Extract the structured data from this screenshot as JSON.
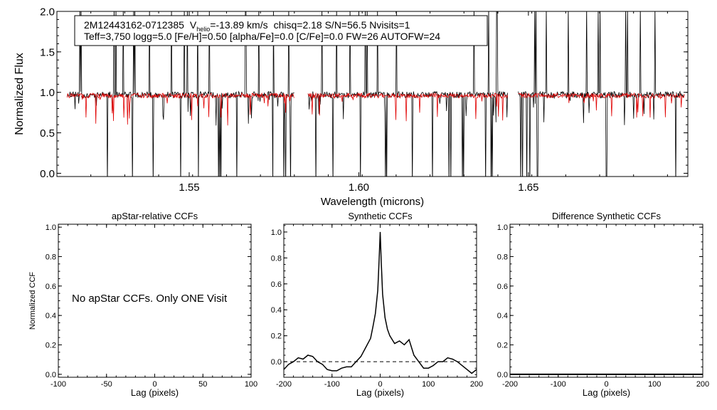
{
  "chart_data": [
    {
      "type": "line",
      "title": "",
      "xlabel": "Wavelength (microns)",
      "ylabel": "Normalized Flux",
      "xlim": [
        1.511,
        1.697
      ],
      "ylim": [
        -0.04,
        2.0
      ],
      "xticks": [
        1.55,
        1.6,
        1.65
      ],
      "xtick_labels": [
        "1.55",
        "1.60",
        "1.65"
      ],
      "yticks": [
        0.0,
        0.5,
        1.0,
        1.5,
        2.0
      ],
      "ytick_labels": [
        "0.0",
        "0.5",
        "1.0",
        "1.5",
        "2.0"
      ],
      "annotation": {
        "star_id": "2M12443162-0712385",
        "v_label": "V",
        "v_sub": "helio",
        "v_value": "=-13.89 km/s",
        "rest_line1": "chisq=2.18  S/N=56.5  Nvisits=1",
        "line2": "Teff=3,750 logg=5.0 [Fe/H]=0.50 [alpha/Fe]=0.0 [C/Fe]=0.0 FW=26 AUTOFW=24"
      },
      "detector_ranges": [
        [
          1.514,
          1.581
        ],
        [
          1.585,
          1.644
        ],
        [
          1.647,
          1.696
        ]
      ],
      "series": [
        {
          "name": "observed",
          "color": "#000000",
          "continuum": 0.97
        },
        {
          "name": "synthetic",
          "color": "#e00000",
          "continuum": 0.96
        }
      ],
      "spikes_up": [
        1.518,
        1.523,
        1.528,
        1.531,
        1.534,
        1.538,
        1.541,
        1.545,
        1.549,
        1.551,
        1.553,
        1.556,
        1.559,
        1.563,
        1.567,
        1.571,
        1.575,
        1.579,
        1.589,
        1.593,
        1.597,
        1.602,
        1.606,
        1.611,
        1.617,
        1.621,
        1.626,
        1.63,
        1.634,
        1.638,
        1.641,
        1.652,
        1.655,
        1.657,
        1.662,
        1.667,
        1.669,
        1.671,
        1.679,
        1.683,
        1.687,
        1.69
      ],
      "spikes_down": [
        1.514,
        1.526,
        1.533,
        1.539,
        1.544,
        1.547,
        1.553,
        1.559,
        1.564,
        1.575,
        1.578,
        1.58,
        1.587,
        1.592,
        1.6,
        1.608,
        1.616,
        1.622,
        1.627,
        1.631,
        1.637,
        1.639,
        1.641,
        1.648,
        1.65,
        1.653,
        1.665,
        1.673,
        1.685,
        1.693
      ]
    },
    {
      "type": "line",
      "title": "apStar-relative CCFs",
      "xlabel": "Lag (pixels)",
      "ylabel": "Normalized CCF",
      "xlim": [
        -100,
        100
      ],
      "ylim": [
        -0.02,
        1.02
      ],
      "xticks": [
        -100,
        -50,
        0,
        50,
        100
      ],
      "xtick_labels": [
        "-100",
        "-50",
        "0",
        "50",
        "100"
      ],
      "yticks": [
        0.0,
        0.2,
        0.4,
        0.6,
        0.8,
        1.0
      ],
      "ytick_labels": [
        "0.0",
        "0.2",
        "0.4",
        "0.6",
        "0.8",
        "1.0"
      ],
      "message": "No apStar CCFs.  Only ONE Visit",
      "series": []
    },
    {
      "type": "line",
      "title": "Synthetic CCFs",
      "xlabel": "Lag (pixels)",
      "ylabel": "",
      "xlim": [
        -200,
        200
      ],
      "ylim": [
        -0.12,
        1.06
      ],
      "xticks": [
        -200,
        -100,
        0,
        100,
        200
      ],
      "xtick_labels": [
        "-200",
        "-100",
        "0",
        "100",
        "200"
      ],
      "yticks": [
        0.0,
        0.2,
        0.4,
        0.6,
        0.8,
        1.0
      ],
      "ytick_labels": [
        "0.0",
        "0.2",
        "0.4",
        "0.6",
        "0.8",
        "1.0"
      ],
      "reference_line": 0.0,
      "series": [
        {
          "name": "ccf",
          "x": [
            -200,
            -190,
            -180,
            -170,
            -160,
            -150,
            -140,
            -130,
            -120,
            -110,
            -100,
            -90,
            -80,
            -70,
            -60,
            -50,
            -40,
            -30,
            -20,
            -15,
            -10,
            -5,
            -2,
            0,
            2,
            5,
            10,
            15,
            20,
            30,
            40,
            50,
            60,
            70,
            80,
            90,
            100,
            110,
            120,
            130,
            140,
            150,
            160,
            170,
            180,
            190,
            200
          ],
          "y": [
            -0.06,
            -0.02,
            0.0,
            0.03,
            0.02,
            0.05,
            0.04,
            0.0,
            -0.02,
            -0.06,
            -0.07,
            -0.07,
            -0.05,
            -0.04,
            -0.04,
            0.0,
            0.04,
            0.11,
            0.18,
            0.27,
            0.37,
            0.55,
            0.8,
            1.0,
            0.78,
            0.52,
            0.34,
            0.25,
            0.2,
            0.14,
            0.16,
            0.13,
            0.17,
            0.05,
            0.0,
            -0.05,
            -0.05,
            -0.03,
            0.0,
            0.0,
            0.03,
            0.02,
            0.0,
            -0.03,
            -0.06,
            -0.09,
            -0.06
          ]
        }
      ]
    },
    {
      "type": "line",
      "title": "Difference Synthetic CCFs",
      "xlabel": "Lag (pixels)",
      "ylabel": "",
      "xlim": [
        -200,
        200
      ],
      "ylim": [
        -0.02,
        1.02
      ],
      "xticks": [
        -200,
        -100,
        0,
        100,
        200
      ],
      "xtick_labels": [
        "-200",
        "-100",
        "0",
        "100",
        "200"
      ],
      "yticks": [
        0.0,
        0.2,
        0.4,
        0.6,
        0.8,
        1.0
      ],
      "ytick_labels": [
        "0.0",
        "0.2",
        "0.4",
        "0.6",
        "0.8",
        "1.0"
      ],
      "series": [
        {
          "name": "difference",
          "x": [
            -200,
            200
          ],
          "y": [
            0.0,
            0.0
          ]
        }
      ]
    }
  ]
}
